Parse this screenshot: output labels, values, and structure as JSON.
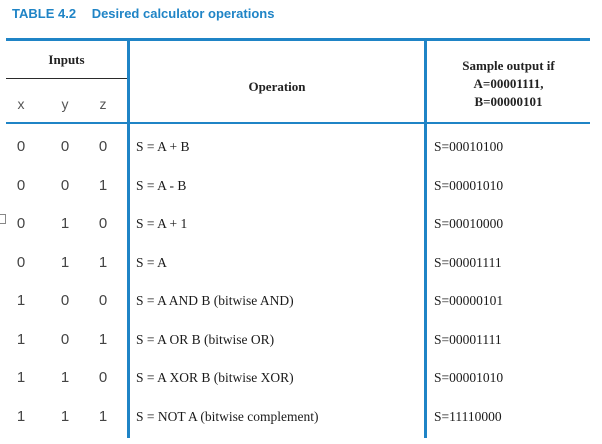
{
  "caption": {
    "number": "TABLE 4.2",
    "title": "Desired calculator operations"
  },
  "header": {
    "inputs": "Inputs",
    "x": "x",
    "y": "y",
    "z": "z",
    "operation": "Operation",
    "sample_line1": "Sample output if",
    "sample_line2": "A=00001111,",
    "sample_line3": "B=00000101"
  },
  "rows": [
    {
      "x": "0",
      "y": "0",
      "z": "0",
      "op": "S = A + B",
      "out": "S=00010100"
    },
    {
      "x": "0",
      "y": "0",
      "z": "1",
      "op": "S = A - B",
      "out": "S=00001010"
    },
    {
      "x": "0",
      "y": "1",
      "z": "0",
      "op": "S = A + 1",
      "out": "S=00010000"
    },
    {
      "x": "0",
      "y": "1",
      "z": "1",
      "op": "S = A",
      "out": "S=00001111"
    },
    {
      "x": "1",
      "y": "0",
      "z": "0",
      "op": "S = A AND B (bitwise AND)",
      "out": "S=00000101"
    },
    {
      "x": "1",
      "y": "0",
      "z": "1",
      "op": "S = A OR B (bitwise OR)",
      "out": "S=00001111"
    },
    {
      "x": "1",
      "y": "1",
      "z": "0",
      "op": "S = A XOR B (bitwise XOR)",
      "out": "S=00001010"
    },
    {
      "x": "1",
      "y": "1",
      "z": "1",
      "op": "S = NOT A (bitwise complement)",
      "out": "S=11110000"
    }
  ]
}
